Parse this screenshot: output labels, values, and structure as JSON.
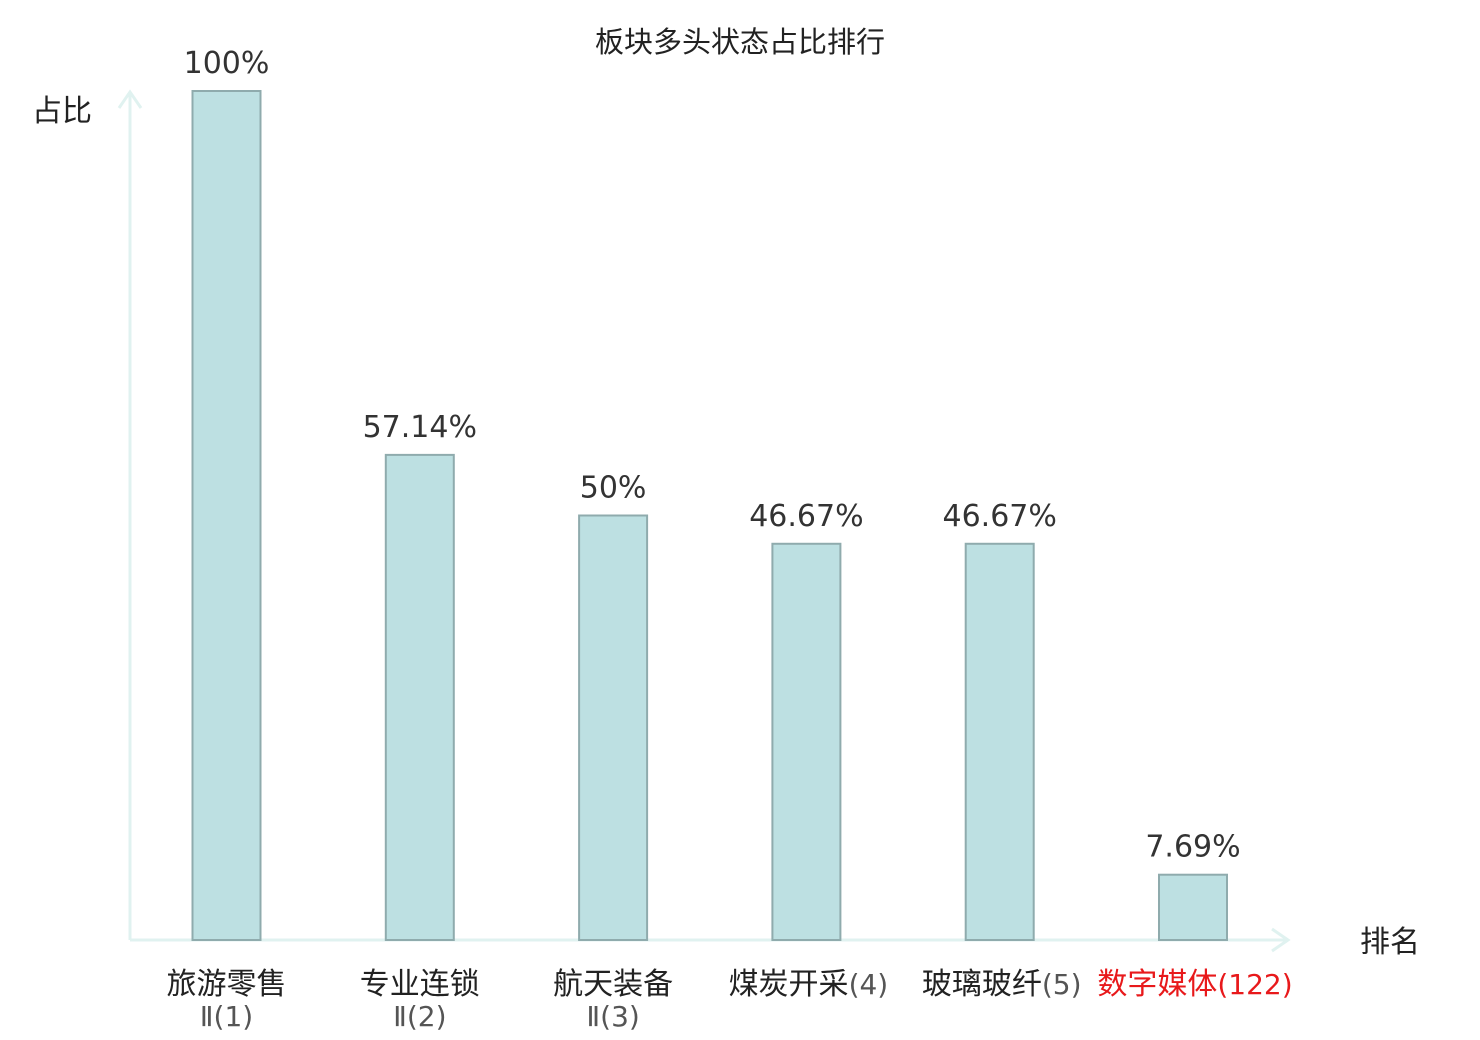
{
  "chart_data": {
    "type": "bar",
    "title": "板块多头状态占比排行",
    "xlabel": "排名",
    "ylabel": "占比",
    "ylim": [
      0,
      100
    ],
    "grid": false,
    "categories": [
      {
        "name": "旅游零售",
        "rank": "Ⅱ(1)",
        "highlight": false
      },
      {
        "name": "专业连锁",
        "rank": "Ⅱ(2)",
        "highlight": false
      },
      {
        "name": "航天装备",
        "rank": "Ⅱ(3)",
        "highlight": false
      },
      {
        "name": "煤炭开采",
        "rank": "(4)",
        "highlight": false
      },
      {
        "name": "玻璃玻纤",
        "rank": "(5)",
        "highlight": false
      },
      {
        "name": "数字媒体",
        "rank": "(122)",
        "highlight": true
      }
    ],
    "values": [
      100,
      57.14,
      50,
      46.67,
      46.67,
      7.69
    ],
    "value_labels": [
      "100%",
      "57.14%",
      "50%",
      "46.67%",
      "46.67%",
      "7.69%"
    ],
    "colors": {
      "bar_fill": "#bde0e2",
      "bar_stroke": "#8fabad",
      "axis": "#e0f2f0",
      "text": "#333333",
      "rank_text": "#555555",
      "highlight": "#e8191b"
    }
  }
}
